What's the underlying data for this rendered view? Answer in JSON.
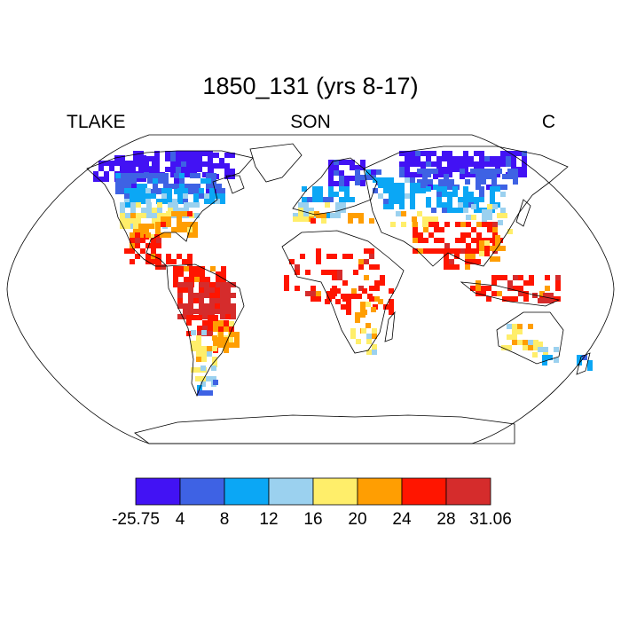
{
  "title": "1850_131 (yrs 8-17)",
  "left_label": "TLAKE",
  "center_label": "SON",
  "right_label": "C",
  "colorbar": {
    "colors": [
      "#4212f4",
      "#3e62e4",
      "#0ba7f5",
      "#9bd1ef",
      "#ffee6a",
      "#ff9e02",
      "#ff1500",
      "#d52c2c"
    ],
    "labels": [
      "-25.75",
      "4",
      "8",
      "12",
      "16",
      "20",
      "24",
      "28",
      "31.06"
    ]
  },
  "map": {
    "projection": "robinson",
    "outline_color": "#000000"
  }
}
